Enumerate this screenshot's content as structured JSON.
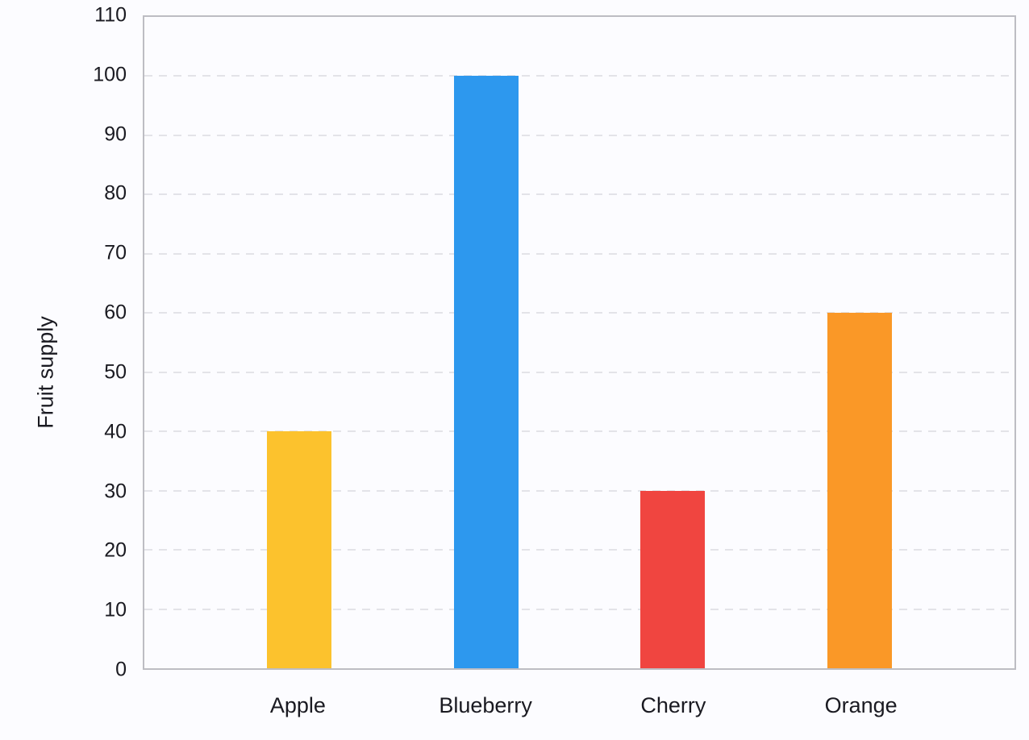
{
  "chart_data": {
    "type": "bar",
    "title": "",
    "xlabel": "",
    "ylabel": "Fruit supply",
    "categories": [
      "Apple",
      "Blueberry",
      "Cherry",
      "Orange"
    ],
    "values": [
      40,
      100,
      30,
      60
    ],
    "bar_colors": [
      "#FCC22D",
      "#2D98EE",
      "#F04540",
      "#FA9827"
    ],
    "ylim": [
      0,
      110
    ],
    "yticks": [
      0,
      10,
      20,
      30,
      40,
      50,
      60,
      70,
      80,
      90,
      100,
      110
    ],
    "grid": "horizontal-dashed",
    "legend_position": "none",
    "plot_border": true
  },
  "colors": {
    "background": "#FCFCFF",
    "plot_border": "#BDBDC3",
    "gridline": "#E3E3E8",
    "text": "#1A1A21"
  }
}
